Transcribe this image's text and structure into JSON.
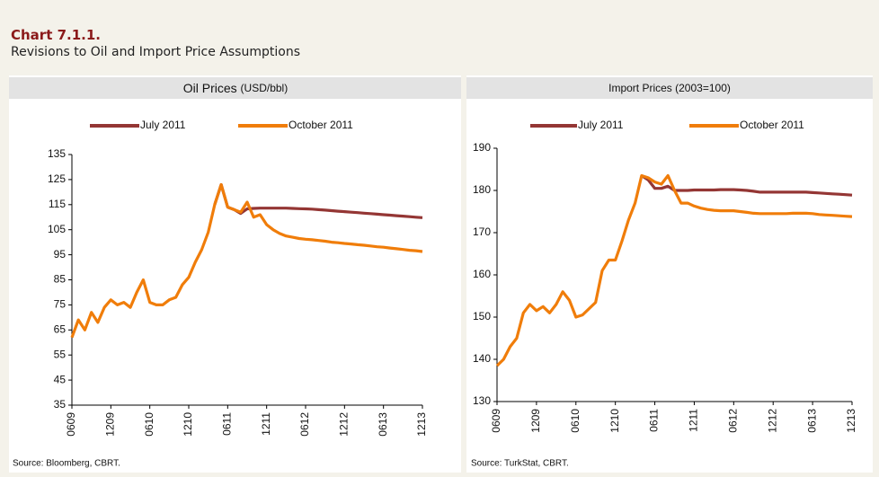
{
  "header": {
    "title": "Chart 7.1.1.",
    "subtitle": "Revisions to Oil and Import Price Assumptions"
  },
  "chart_data": [
    {
      "type": "line",
      "title": "Oil Prices",
      "title_unit": "(USD/bbl)",
      "source": "Source: Bloomberg, CBRT.",
      "categories": [
        "0609",
        null,
        null,
        null,
        null,
        null,
        "1209",
        null,
        null,
        null,
        null,
        null,
        "0610",
        null,
        null,
        null,
        null,
        null,
        "1210",
        null,
        null,
        null,
        null,
        null,
        "0611",
        null,
        null,
        null,
        null,
        null,
        "1211",
        null,
        null,
        null,
        null,
        null,
        "0612",
        null,
        null,
        null,
        null,
        null,
        "1212",
        null,
        null,
        null,
        null,
        null,
        "0613",
        null,
        null,
        null,
        null,
        null,
        "1213"
      ],
      "ylim": [
        35,
        135
      ],
      "yticks": [
        35,
        45,
        55,
        65,
        75,
        85,
        95,
        105,
        115,
        125,
        135
      ],
      "series": [
        {
          "name": "July 2011",
          "color": "#943634",
          "values": [
            null,
            null,
            null,
            null,
            null,
            null,
            null,
            null,
            null,
            null,
            null,
            null,
            null,
            null,
            null,
            null,
            null,
            null,
            null,
            null,
            null,
            null,
            115,
            123,
            114,
            113,
            111.5,
            113.3,
            113.5,
            113.6,
            113.6,
            113.6,
            113.6,
            113.6,
            113.5,
            113.4,
            113.3,
            113.2,
            113.0,
            112.8,
            112.6,
            112.4,
            112.2,
            112.0,
            111.8,
            111.6,
            111.4,
            111.2,
            111.0,
            110.8,
            110.6,
            110.4,
            110.2,
            110.0,
            109.8
          ]
        },
        {
          "name": "October 2011",
          "color": "#f07d0a",
          "values": [
            62,
            69,
            65,
            72,
            68,
            74,
            77,
            75,
            76,
            74,
            80,
            85,
            76,
            75,
            75,
            77,
            78,
            83,
            86,
            92,
            97,
            104,
            115,
            123,
            114,
            113,
            112,
            116,
            110,
            111,
            107,
            105,
            103.5,
            102.5,
            102,
            101.5,
            101.2,
            101,
            100.7,
            100.4,
            100,
            99.8,
            99.5,
            99.3,
            99,
            98.8,
            98.5,
            98.2,
            98,
            97.7,
            97.4,
            97.1,
            96.8,
            96.6,
            96.3
          ]
        }
      ]
    },
    {
      "type": "line",
      "title": "Import Prices (2003=100)",
      "source": "Source: TurkStat, CBRT.",
      "categories": [
        "0609",
        null,
        null,
        null,
        null,
        null,
        "1209",
        null,
        null,
        null,
        null,
        null,
        "0610",
        null,
        null,
        null,
        null,
        null,
        "1210",
        null,
        null,
        null,
        null,
        null,
        "0611",
        null,
        null,
        null,
        null,
        null,
        "1211",
        null,
        null,
        null,
        null,
        null,
        "0612",
        null,
        null,
        null,
        null,
        null,
        "1212",
        null,
        null,
        null,
        null,
        null,
        "0613",
        null,
        null,
        null,
        null,
        null,
        "1213"
      ],
      "ylim": [
        130,
        190
      ],
      "yticks": [
        130,
        140,
        150,
        160,
        170,
        180,
        190
      ],
      "series": [
        {
          "name": "July 2011",
          "color": "#943634",
          "values": [
            null,
            null,
            null,
            null,
            null,
            null,
            null,
            null,
            null,
            null,
            null,
            null,
            null,
            null,
            null,
            null,
            null,
            null,
            null,
            null,
            null,
            null,
            183.5,
            182.5,
            180.5,
            180.5,
            181,
            180,
            180,
            180,
            180.1,
            180.1,
            180.1,
            180.1,
            180.2,
            180.2,
            180.2,
            180.1,
            180,
            179.8,
            179.6,
            179.6,
            179.6,
            179.6,
            179.6,
            179.6,
            179.6,
            179.6,
            179.5,
            179.4,
            179.3,
            179.2,
            179.1,
            179,
            178.9
          ]
        },
        {
          "name": "October 2011",
          "color": "#f07d0a",
          "values": [
            138.5,
            140,
            143,
            145,
            151,
            153,
            151.5,
            152.5,
            151,
            153,
            156,
            154,
            150,
            150.5,
            152,
            153.5,
            161,
            163.5,
            163.5,
            168,
            173,
            177,
            183.5,
            183,
            182,
            181.5,
            183.5,
            180,
            177,
            177,
            176.3,
            175.8,
            175.5,
            175.3,
            175.2,
            175.2,
            175.2,
            175,
            174.8,
            174.6,
            174.5,
            174.5,
            174.5,
            174.5,
            174.5,
            174.6,
            174.6,
            174.6,
            174.5,
            174.3,
            174.2,
            174.1,
            174,
            173.9,
            173.8
          ]
        }
      ]
    }
  ]
}
